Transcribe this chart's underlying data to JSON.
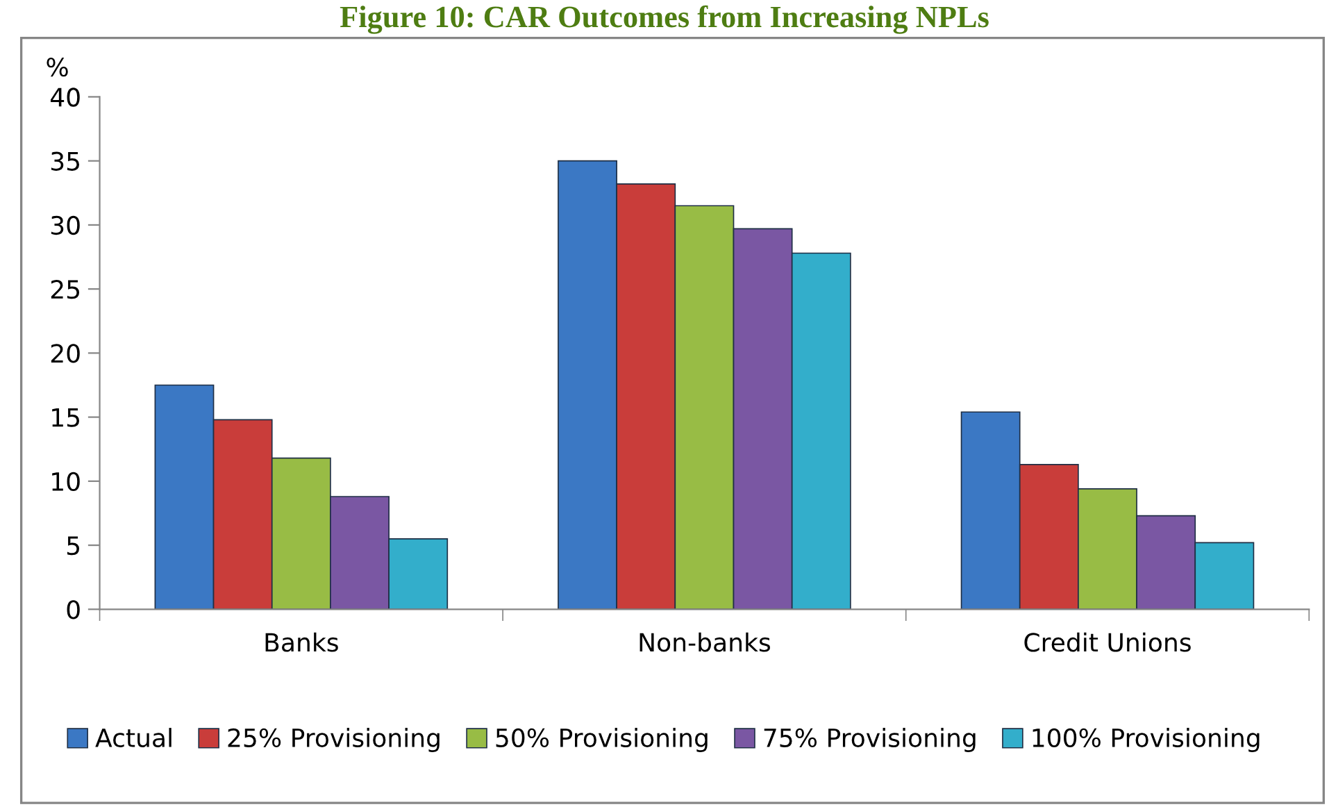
{
  "chart_data": {
    "type": "bar",
    "title": "Figure 10: CAR Outcomes from Increasing NPLs",
    "ylabel": "%",
    "categories": [
      "Banks",
      "Non-banks",
      "Credit Unions"
    ],
    "series": [
      {
        "name": "Actual",
        "color": "#3b78c4",
        "values": [
          17.5,
          35.0,
          15.4
        ]
      },
      {
        "name": "25% Provisioning",
        "color": "#c93d3a",
        "values": [
          14.8,
          33.2,
          11.3
        ]
      },
      {
        "name": "50% Provisioning",
        "color": "#98bc45",
        "values": [
          11.8,
          31.5,
          9.4
        ]
      },
      {
        "name": "75% Provisioning",
        "color": "#7a57a3",
        "values": [
          8.8,
          29.7,
          7.3
        ]
      },
      {
        "name": "100% Provisioning",
        "color": "#33aecb",
        "values": [
          5.5,
          27.8,
          5.2
        ]
      }
    ],
    "ylim": [
      0,
      40
    ],
    "yticks": [
      0,
      5,
      10,
      15,
      20,
      25,
      30,
      35,
      40
    ],
    "grid": false,
    "legend": "bottom"
  }
}
